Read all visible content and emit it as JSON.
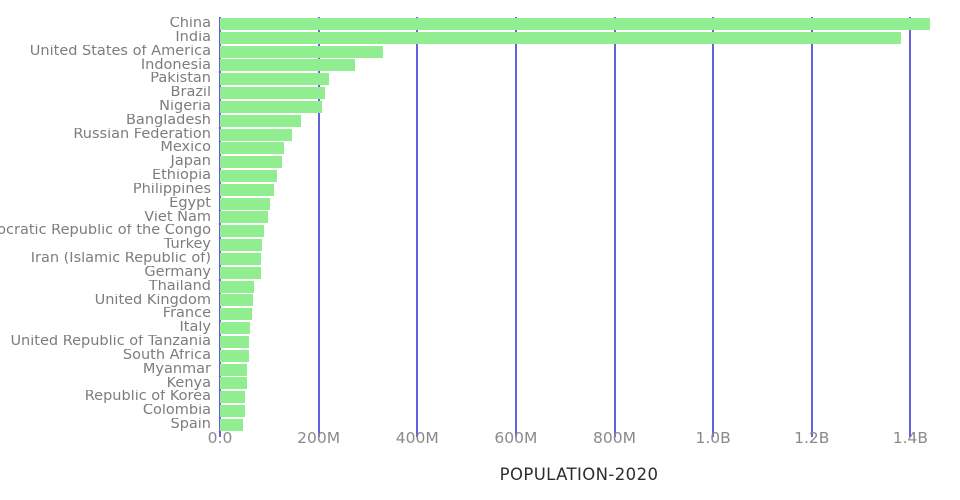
{
  "chart_data": {
    "type": "bar",
    "orientation": "horizontal",
    "xlabel": "POPULATION-2020",
    "ylabel": "",
    "title": "",
    "value_unit": "millions",
    "categories": [
      "China",
      "India",
      "United States of America",
      "Indonesia",
      "Pakistan",
      "Brazil",
      "Nigeria",
      "Bangladesh",
      "Russian Federation",
      "Mexico",
      "Japan",
      "Ethiopia",
      "Philippines",
      "Egypt",
      "Viet Nam",
      "Democratic Republic of the Congo",
      "Turkey",
      "Iran (Islamic Republic of)",
      "Germany",
      "Thailand",
      "United Kingdom",
      "France",
      "Italy",
      "United Republic of Tanzania",
      "South Africa",
      "Myanmar",
      "Kenya",
      "Republic of Korea",
      "Colombia",
      "Spain"
    ],
    "values": [
      1439.3,
      1380.0,
      331.0,
      273.5,
      220.9,
      212.6,
      206.1,
      164.7,
      145.9,
      128.9,
      126.5,
      115.0,
      109.6,
      102.3,
      97.3,
      89.6,
      84.3,
      84.0,
      83.8,
      69.8,
      67.9,
      65.3,
      60.5,
      59.7,
      59.3,
      54.4,
      53.8,
      51.3,
      50.9,
      46.8
    ],
    "xlim": [
      0,
      1456
    ],
    "x_tick_values": [
      0,
      200,
      400,
      600,
      800,
      1000,
      1200,
      1400
    ],
    "x_tick_labels": [
      "0.0",
      "200M",
      "400M",
      "600M",
      "800M",
      "1.0B",
      "1.2B",
      "1.4B"
    ],
    "grid": true,
    "legend_position": "none",
    "colors": {
      "bar": "#90ee90",
      "gridline": "#4a43dd",
      "category_label": "#7d7d7d",
      "tick_label": "#8a8a8a",
      "axis_title": "#2d2d2d",
      "background": "#ffffff"
    }
  }
}
